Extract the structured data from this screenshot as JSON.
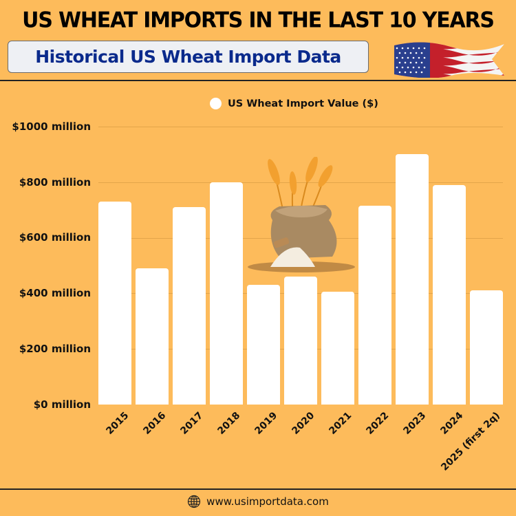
{
  "header": {
    "title": "US WHEAT IMPORTS IN THE LAST 10 YEARS",
    "subtitle": "Historical US Wheat Import Data",
    "flag_icon": "us-flag-icon"
  },
  "legend": {
    "label": "US Wheat Import Value ($)",
    "color": "#ffffff"
  },
  "axis": {
    "y_ticks": [
      "$1000 million",
      "$800 million",
      "$600 million",
      "$400 million",
      "$200 million",
      "$0 million"
    ]
  },
  "footer": {
    "url": "www.usimportdata.com",
    "icon": "globe-icon"
  },
  "colors": {
    "background": "#fdbb5b",
    "bar": "#ffffff",
    "subtitle_text": "#0a2a8c",
    "subtitle_box": "#eef0f4"
  },
  "chart_data": {
    "type": "bar",
    "title": "US WHEAT IMPORTS IN THE LAST 10 YEARS",
    "subtitle": "Historical US Wheat Import Data",
    "categories": [
      "2015",
      "2016",
      "2017",
      "2018",
      "2019",
      "2020",
      "2021",
      "2022",
      "2023",
      "2024",
      "2025 (first 2q)"
    ],
    "series": [
      {
        "name": "US Wheat Import Value ($)",
        "unit": "million USD",
        "values": [
          730,
          490,
          710,
          800,
          430,
          460,
          405,
          715,
          900,
          790,
          410
        ]
      }
    ],
    "xlabel": "",
    "ylabel": "",
    "ylim": [
      0,
      1000
    ],
    "y_tick_labels": [
      "$0 million",
      "$200 million",
      "$400 million",
      "$600 million",
      "$800 million",
      "$1000 million"
    ],
    "grid": true,
    "legend_position": "top"
  }
}
